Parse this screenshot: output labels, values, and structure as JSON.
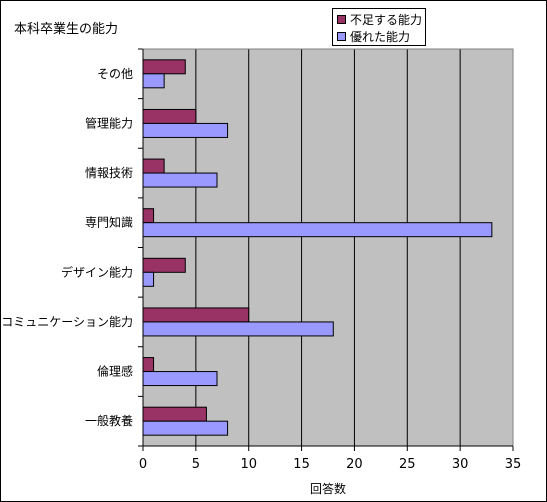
{
  "chart_data": {
    "type": "bar",
    "orientation": "horizontal",
    "title": "本科卒業生の能力",
    "xlabel": "回答数",
    "ylabel": "",
    "categories": [
      "その他",
      "管理能力",
      "情報技術",
      "専門知識",
      "デザイン能力",
      "コミュニケーション能力",
      "倫理感",
      "一般教養"
    ],
    "series": [
      {
        "name": "不足する能力",
        "values": [
          4,
          5,
          2,
          1,
          4,
          10,
          1,
          6
        ],
        "color": "#993366"
      },
      {
        "name": "優れた能力",
        "values": [
          2,
          8,
          7,
          33,
          1,
          18,
          7,
          8
        ],
        "color": "#9999ff"
      }
    ],
    "xlim": [
      0,
      35
    ],
    "xticks": [
      0,
      5,
      10,
      15,
      20,
      25,
      30,
      35
    ],
    "grid": true,
    "plot_background": "#c0c0c0",
    "legend_position": "top-right"
  }
}
